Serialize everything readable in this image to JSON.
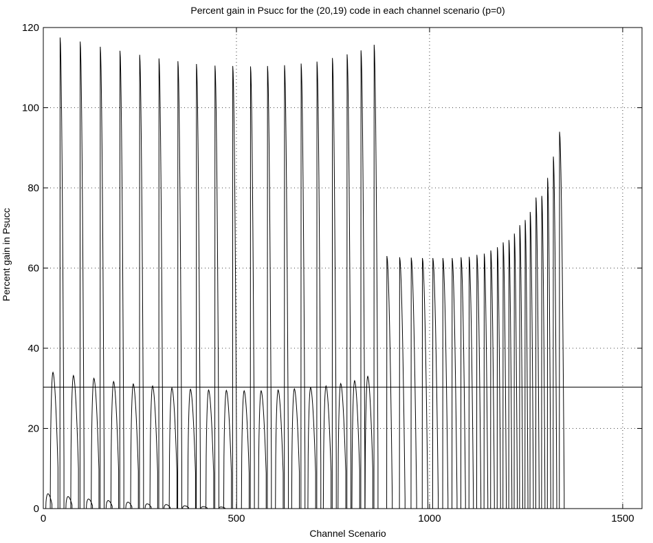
{
  "chart_data": {
    "type": "line",
    "title": "Percent gain in Psucc for the (20,19) code in each channel scenario (p=0)",
    "xlabel": "Channel Scenario",
    "ylabel": "Percent gain in Psucc",
    "xlim": [
      0,
      1550
    ],
    "ylim": [
      0,
      120
    ],
    "xticks": [
      0,
      500,
      1000,
      1500
    ],
    "yticks": [
      0,
      20,
      40,
      60,
      80,
      100,
      120
    ],
    "grid": "dotted",
    "reference_line": {
      "y": 30.3
    },
    "line_color": "#000000",
    "series": [
      {
        "kind": "tall_spikes",
        "points": [
          [
            43,
            117.5
          ],
          [
            95,
            116.5
          ],
          [
            147,
            115.2
          ],
          [
            198,
            114.2
          ],
          [
            249,
            113.2
          ],
          [
            299,
            112.3
          ],
          [
            348,
            111.6
          ],
          [
            396,
            110.9
          ],
          [
            444,
            110.5
          ],
          [
            490,
            110.4
          ],
          [
            536,
            110.3
          ],
          [
            580,
            110.4
          ],
          [
            624,
            110.6
          ],
          [
            667,
            111.0
          ],
          [
            708,
            111.5
          ],
          [
            748,
            112.4
          ],
          [
            786,
            113.3
          ],
          [
            822,
            114.3
          ],
          [
            856,
            115.7
          ]
        ]
      },
      {
        "kind": "medium_spikes",
        "points": [
          [
            889,
            63.0
          ],
          [
            922,
            62.7
          ],
          [
            952,
            62.6
          ],
          [
            981,
            62.5
          ],
          [
            1008,
            62.5
          ],
          [
            1034,
            62.5
          ],
          [
            1058,
            62.5
          ],
          [
            1081,
            62.7
          ],
          [
            1102,
            62.8
          ],
          [
            1122,
            63.3
          ],
          [
            1141,
            63.6
          ],
          [
            1158,
            64.4
          ],
          [
            1175,
            65.2
          ],
          [
            1190,
            66.4
          ],
          [
            1205,
            67.0
          ],
          [
            1219,
            68.6
          ],
          [
            1233,
            70.7
          ],
          [
            1247,
            72.0
          ],
          [
            1260,
            74.0
          ],
          [
            1275,
            77.6
          ],
          [
            1290,
            78.0
          ],
          [
            1305,
            82.5
          ],
          [
            1320,
            87.8
          ],
          [
            1336,
            94.0
          ]
        ]
      },
      {
        "kind": "small_humps",
        "points": [
          [
            25,
            34.0
          ],
          [
            78,
            33.2
          ],
          [
            131,
            32.5
          ],
          [
            182,
            31.7
          ],
          [
            233,
            31.1
          ],
          [
            283,
            30.6
          ],
          [
            333,
            30.1
          ],
          [
            381,
            29.8
          ],
          [
            428,
            29.6
          ],
          [
            474,
            29.5
          ],
          [
            520,
            29.4
          ],
          [
            564,
            29.4
          ],
          [
            608,
            29.6
          ],
          [
            650,
            29.9
          ],
          [
            692,
            30.2
          ],
          [
            732,
            30.6
          ],
          [
            770,
            31.2
          ],
          [
            806,
            31.9
          ],
          [
            840,
            33.0
          ]
        ]
      },
      {
        "kind": "tiny_humps",
        "points": [
          [
            12,
            3.7
          ],
          [
            64,
            3.0
          ],
          [
            117,
            2.4
          ],
          [
            168,
            2.0
          ],
          [
            219,
            1.6
          ],
          [
            269,
            1.2
          ],
          [
            318,
            1.0
          ],
          [
            366,
            0.7
          ],
          [
            414,
            0.5
          ],
          [
            460,
            0.4
          ]
        ]
      }
    ]
  }
}
